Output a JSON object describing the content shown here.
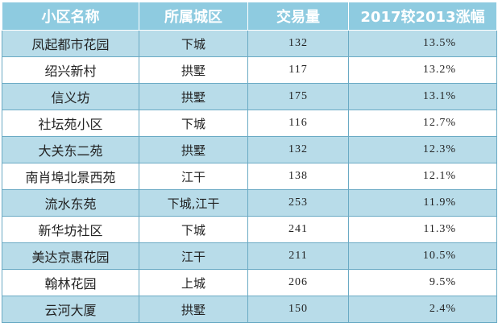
{
  "table": {
    "headers": [
      "小区名称",
      "所属城区",
      "交易量",
      "2017较2013涨幅"
    ],
    "rows": [
      {
        "name": "凤起都市花园",
        "district": "下城",
        "volume": "132",
        "change": "13.5%"
      },
      {
        "name": "绍兴新村",
        "district": "拱墅",
        "volume": "117",
        "change": "13.2%"
      },
      {
        "name": "信义坊",
        "district": "拱墅",
        "volume": "175",
        "change": "13.1%"
      },
      {
        "name": "社坛苑小区",
        "district": "下城",
        "volume": "116",
        "change": "12.7%"
      },
      {
        "name": "大关东二苑",
        "district": "拱墅",
        "volume": "132",
        "change": "12.3%"
      },
      {
        "name": "南肖埠北景西苑",
        "district": "江干",
        "volume": "138",
        "change": "12.1%"
      },
      {
        "name": "流水东苑",
        "district": "下城,江干",
        "volume": "253",
        "change": "11.9%"
      },
      {
        "name": "新华坊社区",
        "district": "下城",
        "volume": "241",
        "change": "11.3%"
      },
      {
        "name": "美达京惠花园",
        "district": "江干",
        "volume": "211",
        "change": "10.5%"
      },
      {
        "name": "翰林花园",
        "district": "上城",
        "volume": "206",
        "change": "9.5%"
      },
      {
        "name": "云河大厦",
        "district": "拱墅",
        "volume": "150",
        "change": "2.4%"
      }
    ]
  },
  "colors": {
    "header_bg": "#8ecbe0",
    "row_alt_bg": "#b8dce9",
    "border": "#6aaac4"
  }
}
